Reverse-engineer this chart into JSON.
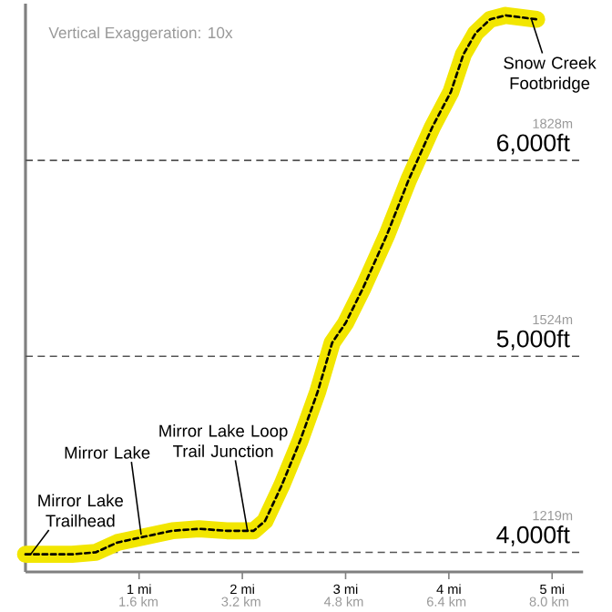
{
  "chart_data": {
    "type": "line",
    "annotations": [
      "Vertical Exaggeration: 10x",
      {
        "text": "Mirror Lake Trailhead",
        "x": -0.05,
        "y": 3990
      },
      {
        "text": "Mirror Lake",
        "x": 1.02,
        "y": 4090
      },
      {
        "text": "Mirror Lake Loop Trail Junction",
        "x": 2.05,
        "y": 4110
      },
      {
        "text": "Snow Creek Footbridge",
        "x": 4.8,
        "y": 6720
      }
    ],
    "series": [
      {
        "color": "#f2e600",
        "x": [
          -0.1,
          0.35,
          0.58,
          0.79,
          1.05,
          1.32,
          1.58,
          1.85,
          2.11,
          2.22,
          2.38,
          2.56,
          2.73,
          2.87,
          3.0,
          3.17,
          3.4,
          3.61,
          3.84,
          4.02,
          4.14,
          4.26,
          4.4,
          4.55,
          4.85
        ],
        "values": [
          3990,
          3990,
          4000,
          4050,
          4080,
          4110,
          4120,
          4110,
          4110,
          4160,
          4340,
          4570,
          4820,
          5070,
          5170,
          5350,
          5620,
          5900,
          6170,
          6350,
          6540,
          6650,
          6720,
          6740,
          6720
        ]
      }
    ],
    "xlim": [
      -0.1,
      5.3
    ],
    "xticks": [
      {
        "value": 1,
        "label": "1 mi"
      },
      {
        "value": 2,
        "label": "2 mi"
      },
      {
        "value": 3,
        "label": "3 mi"
      },
      {
        "value": 4,
        "label": "4 mi"
      },
      {
        "value": 5,
        "label": "5 mi"
      }
    ],
    "x2lim": [
      -0.16,
      8.53
    ],
    "x2ticks": [
      {
        "value": 1.6,
        "label": "1.6 km"
      },
      {
        "value": 3.2,
        "label": "3.2 km"
      },
      {
        "value": 4.8,
        "label": "4.8 km"
      },
      {
        "value": 6.4,
        "label": "6.4 km"
      },
      {
        "value": 8.0,
        "label": "8.0 km"
      }
    ],
    "ylim": [
      3900,
      6800
    ],
    "yticks": [
      {
        "value": 4000,
        "label": "4,000ft"
      },
      {
        "value": 5000,
        "label": "5,000ft"
      },
      {
        "value": 6000,
        "label": "6,000ft"
      }
    ],
    "ref_lines": [
      {
        "axis": "y",
        "value": 4000,
        "label": "1219m",
        "color": "#555555",
        "line_style": "dashed"
      },
      {
        "axis": "y",
        "value": 5000,
        "label": "1524m",
        "color": "#555555",
        "line_style": "dashed"
      },
      {
        "axis": "y",
        "value": 6000,
        "label": "1828m",
        "color": "#555555",
        "line_style": "dashed"
      }
    ]
  }
}
